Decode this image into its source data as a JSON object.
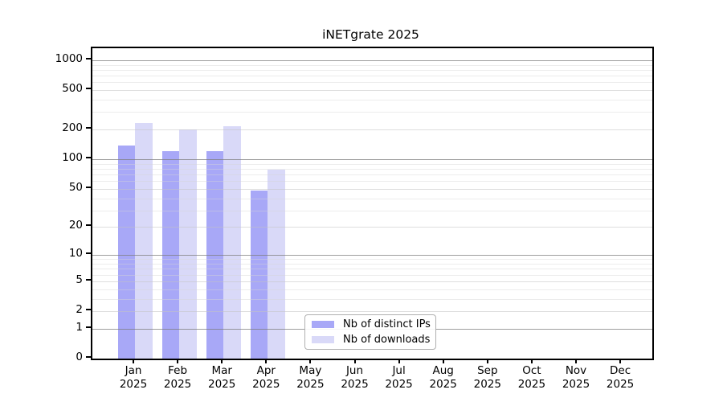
{
  "chart_data": {
    "type": "bar",
    "title": "iNETgrate 2025",
    "categories": [
      "Jan",
      "Feb",
      "Mar",
      "Apr",
      "May",
      "Jun",
      "Jul",
      "Aug",
      "Sep",
      "Oct",
      "Nov",
      "Dec"
    ],
    "year_label": "2025",
    "series": [
      {
        "name": "Nb of distinct IPs",
        "color": "#a8a8f7",
        "values": [
          137,
          120,
          120,
          48,
          0,
          0,
          0,
          0,
          0,
          0,
          0,
          0
        ]
      },
      {
        "name": "Nb of downloads",
        "color": "#d9d9f8",
        "values": [
          235,
          200,
          217,
          78,
          0,
          0,
          0,
          0,
          0,
          0,
          0,
          0
        ]
      }
    ],
    "yticks": [
      0,
      1,
      2,
      5,
      10,
      20,
      50,
      100,
      200,
      500,
      1000
    ],
    "ytick_labels": [
      "0",
      "1",
      "2",
      "5",
      "10",
      "20",
      "50",
      "100",
      "200",
      "500",
      "1000"
    ],
    "scale": "log10(value+1)",
    "ylim": [
      0,
      1320
    ],
    "grid": "horizontal, drawn over bars; darker lines at powers of 10",
    "legend_position": "lower center inside plot",
    "colors": {
      "axis": "#000000",
      "grid_major": "#8a8a8a",
      "grid_minor": "#e8e8e8",
      "background": "#ffffff"
    }
  }
}
